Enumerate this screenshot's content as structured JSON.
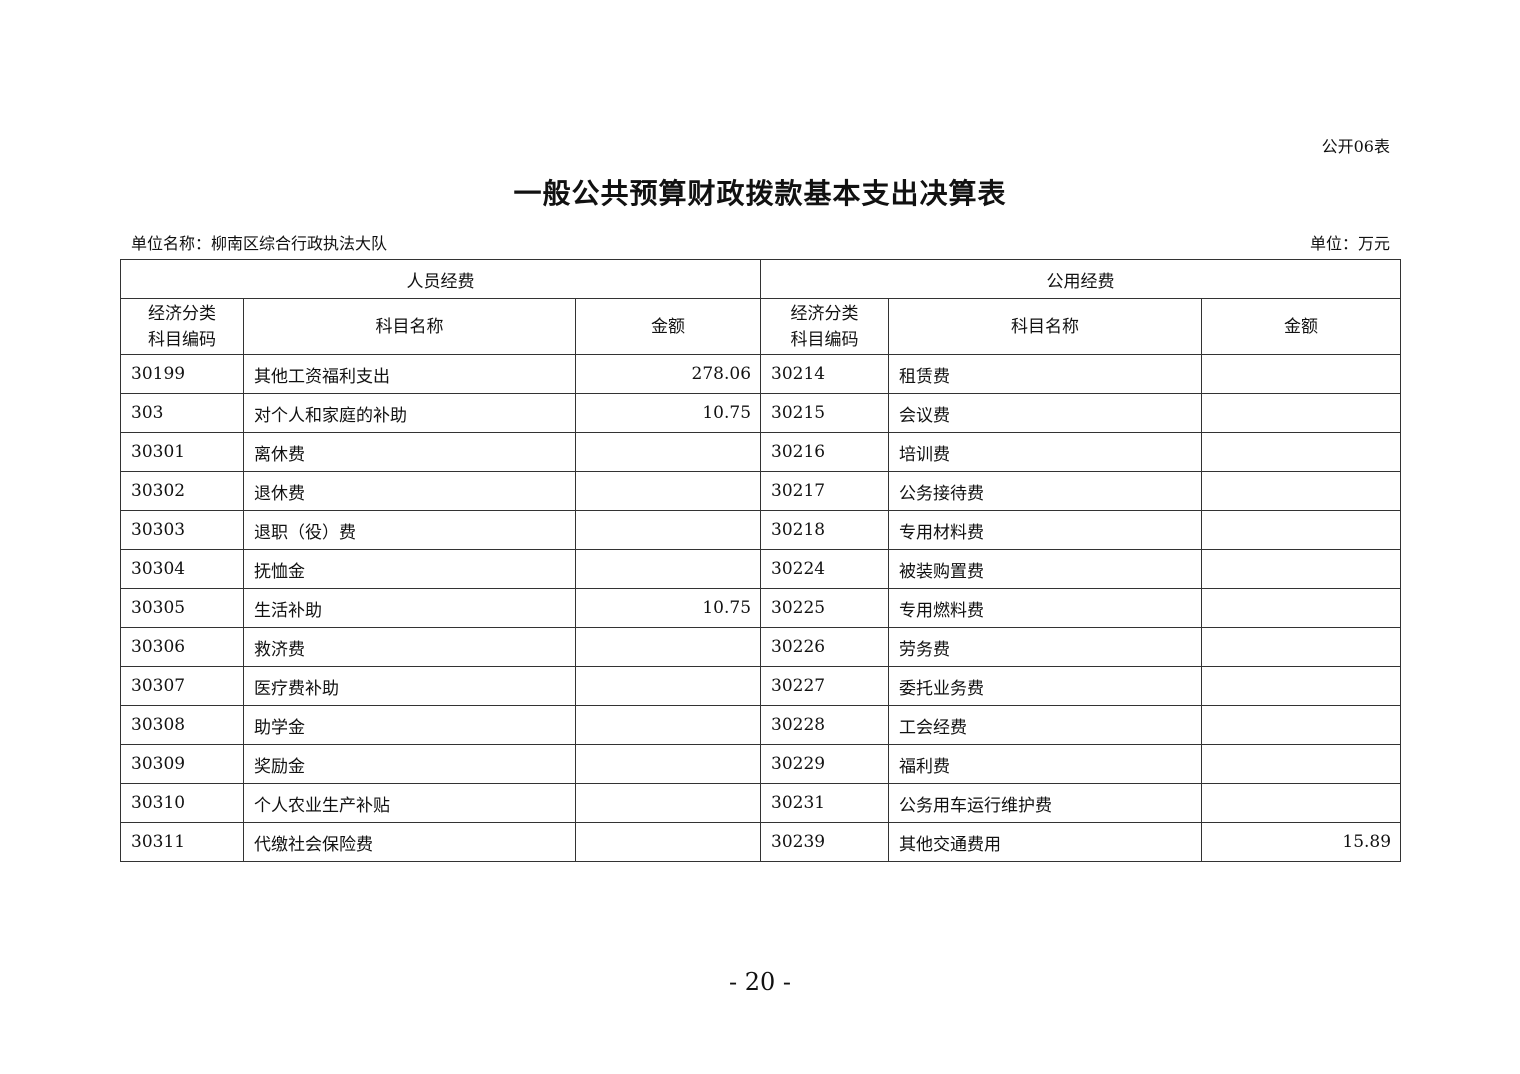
{
  "form_number": "公开06表",
  "title": "一般公共预算财政拨款基本支出决算表",
  "unit_name": "单位名称：柳南区综合行政执法大队",
  "unit": "单位：万元",
  "table": {
    "group_headers": [
      "人员经费",
      "公用经费"
    ],
    "column_headers": [
      "经济分类\n科目编码",
      "科目名称",
      "金额",
      "经济分类\n科目编码",
      "科目名称",
      "金额"
    ],
    "rows": [
      [
        "30199",
        "其他工资福利支出",
        "278.06",
        "30214",
        "租赁费",
        ""
      ],
      [
        "303",
        "对个人和家庭的补助",
        "10.75",
        "30215",
        "会议费",
        ""
      ],
      [
        "30301",
        "离休费",
        "",
        "30216",
        "培训费",
        ""
      ],
      [
        "30302",
        "退休费",
        "",
        "30217",
        "公务接待费",
        ""
      ],
      [
        "30303",
        "退职（役）费",
        "",
        "30218",
        "专用材料费",
        ""
      ],
      [
        "30304",
        "抚恤金",
        "",
        "30224",
        "被装购置费",
        ""
      ],
      [
        "30305",
        "生活补助",
        "10.75",
        "30225",
        "专用燃料费",
        ""
      ],
      [
        "30306",
        "救济费",
        "",
        "30226",
        "劳务费",
        ""
      ],
      [
        "30307",
        "医疗费补助",
        "",
        "30227",
        "委托业务费",
        ""
      ],
      [
        "30308",
        "助学金",
        "",
        "30228",
        "工会经费",
        ""
      ],
      [
        "30309",
        "奖励金",
        "",
        "30229",
        "福利费",
        ""
      ],
      [
        "30310",
        "个人农业生产补贴",
        "",
        "30231",
        "公务用车运行维护费",
        ""
      ],
      [
        "30311",
        "代缴社会保险费",
        "",
        "30239",
        "其他交通费用",
        "15.89"
      ]
    ]
  },
  "page_number": "- 20 -"
}
